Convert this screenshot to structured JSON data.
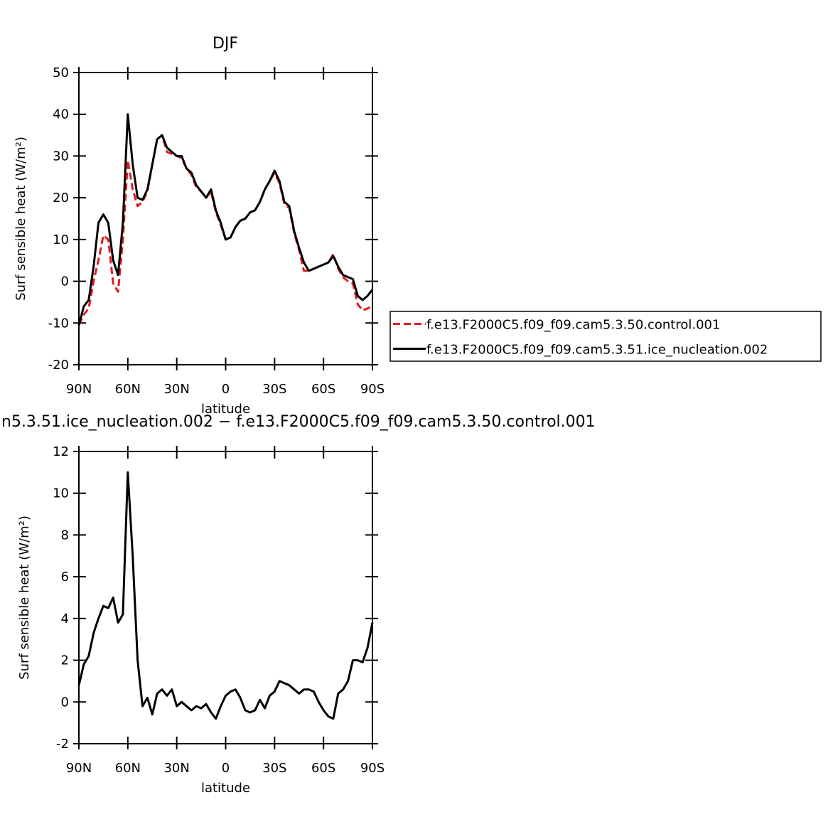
{
  "chart_data": [
    {
      "type": "line",
      "title": "DJF",
      "x_label": "latitude",
      "y_label": "Surf sensible heat (W/m²)",
      "xlim": [
        90,
        -90
      ],
      "xticks": [
        {
          "value": 90,
          "label": "90N"
        },
        {
          "value": 60,
          "label": "60N"
        },
        {
          "value": 30,
          "label": "30N"
        },
        0,
        {
          "value": -30,
          "label": "30S"
        },
        {
          "value": -60,
          "label": "60S"
        },
        {
          "value": -90,
          "label": "90S"
        }
      ],
      "ylim": [
        -20,
        50
      ],
      "yticks": [
        -20,
        -10,
        0,
        10,
        20,
        30,
        40,
        50
      ],
      "legend": "right",
      "x": [
        90,
        87,
        84,
        81,
        78,
        75,
        72,
        69,
        66,
        63,
        60,
        57,
        54,
        51,
        48,
        45,
        42,
        39,
        36,
        33,
        30,
        27,
        24,
        21,
        18,
        15,
        12,
        9,
        6,
        3,
        0,
        -3,
        -6,
        -9,
        -12,
        -15,
        -18,
        -21,
        -24,
        -27,
        -30,
        -33,
        -36,
        -39,
        -42,
        -45,
        -48,
        -51,
        -54,
        -57,
        -60,
        -63,
        -66,
        -69,
        -72,
        -75,
        -78,
        -81,
        -84,
        -87,
        -90
      ],
      "series": [
        {
          "name": "f.e13.F2000C5.f09_f09.cam5.3.50.control.001",
          "color": "#e41a1c",
          "line_style": "dashed",
          "values": [
            -10.5,
            -8,
            -6.5,
            0,
            5,
            11,
            10,
            -0.5,
            -2.5,
            10,
            29,
            22,
            18,
            19,
            21.5,
            28,
            34,
            35,
            31,
            30.5,
            30,
            29.5,
            27,
            25.5,
            22.5,
            21.5,
            20,
            21.5,
            16.5,
            13.5,
            10,
            10.5,
            13,
            14.5,
            15,
            16.5,
            17,
            19,
            22,
            24,
            26,
            23.5,
            18.5,
            17.5,
            11.5,
            7.5,
            2.5,
            2.5,
            3,
            3.5,
            4,
            4.5,
            6.5,
            3,
            1,
            0,
            -0.5,
            -5.5,
            -7,
            -6.5,
            -6
          ]
        },
        {
          "name": "f.e13.F2000C5.f09_f09.cam5.3.51.ice_nucleation.002",
          "color": "#000000",
          "line_style": "solid",
          "values": [
            -10.5,
            -6,
            -4.5,
            3.5,
            14,
            16,
            14,
            5,
            1.5,
            14,
            40,
            28,
            20,
            19.5,
            22,
            28,
            34,
            35,
            32,
            31,
            30,
            30,
            27,
            26,
            23,
            21.5,
            20,
            22,
            17,
            14,
            10,
            10.5,
            13,
            14.5,
            15,
            16.5,
            17,
            19,
            22,
            24,
            26.5,
            24,
            19,
            18,
            12,
            8,
            4.5,
            2.5,
            3,
            3.5,
            4,
            4.5,
            6,
            3.5,
            1.5,
            1,
            0.5,
            -3.5,
            -4.5,
            -3.5,
            -2
          ]
        }
      ]
    },
    {
      "type": "line",
      "title": "n5.3.51.ice_nucleation.002 − f.e13.F2000C5.f09_f09.cam5.3.50.control.001",
      "x_label": "latitude",
      "y_label": "Surf sensible heat (W/m²)",
      "xlim": [
        90,
        -90
      ],
      "xticks": [
        {
          "value": 90,
          "label": "90N"
        },
        {
          "value": 60,
          "label": "60N"
        },
        {
          "value": 30,
          "label": "30N"
        },
        0,
        {
          "value": -30,
          "label": "30S"
        },
        {
          "value": -60,
          "label": "60S"
        },
        {
          "value": -90,
          "label": "90S"
        }
      ],
      "ylim": [
        -2,
        12
      ],
      "yticks": [
        -2,
        0,
        2,
        4,
        6,
        8,
        10,
        12
      ],
      "x": [
        90,
        87,
        84,
        81,
        78,
        75,
        72,
        69,
        66,
        63,
        60,
        57,
        54,
        51,
        48,
        45,
        42,
        39,
        36,
        33,
        30,
        27,
        24,
        21,
        18,
        15,
        12,
        9,
        6,
        3,
        0,
        -3,
        -6,
        -9,
        -12,
        -15,
        -18,
        -21,
        -24,
        -27,
        -30,
        -33,
        -36,
        -39,
        -42,
        -45,
        -48,
        -51,
        -54,
        -57,
        -60,
        -63,
        -66,
        -69,
        -72,
        -75,
        -78,
        -81,
        -84,
        -87,
        -90
      ],
      "series": [
        {
          "color": "#000000",
          "line_style": "solid",
          "values": [
            0.8,
            1.8,
            2.2,
            3.3,
            4,
            4.6,
            4.5,
            5,
            3.8,
            4.2,
            11,
            7,
            2,
            -0.2,
            0.2,
            -0.6,
            0.4,
            0.6,
            0.3,
            0.6,
            -0.2,
            0,
            -0.2,
            -0.4,
            -0.2,
            -0.3,
            -0.1,
            -0.5,
            -0.8,
            -0.2,
            0.3,
            0.5,
            0.6,
            0.2,
            -0.4,
            -0.5,
            -0.4,
            0.1,
            -0.3,
            0.3,
            0.5,
            1,
            0.9,
            0.8,
            0.6,
            0.4,
            0.6,
            0.6,
            0.5,
            0,
            -0.4,
            -0.7,
            -0.8,
            0.4,
            0.6,
            1,
            2,
            2,
            1.9,
            2.6,
            3.8
          ]
        }
      ]
    }
  ]
}
